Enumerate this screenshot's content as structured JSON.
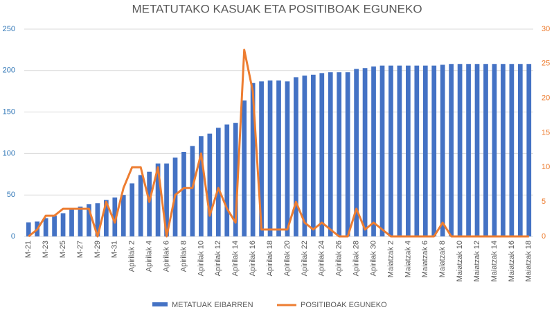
{
  "chart_data": {
    "type": "bar-line",
    "title": "METATUTAKO KASUAK ETA POSITIBOAK EGUNEKO",
    "categories": [
      "M-21",
      null,
      "M-23",
      null,
      "M-25",
      null,
      "M-27",
      null,
      "M-29",
      null,
      "M-31",
      null,
      "Apirilak 2",
      null,
      "Apirilak 4",
      null,
      "Apirilak 6",
      null,
      "Apirilak 8",
      null,
      "Apirilak 10",
      null,
      "Apirilak 12",
      null,
      "Apirilak 14",
      null,
      "Apirilak 16",
      null,
      "Apirilak 18",
      null,
      "Apirilak 20",
      null,
      "Apirilak 22",
      null,
      "Apirilak 24",
      null,
      "Apirilak 26",
      null,
      "Apirilak 28",
      null,
      "Apirilak 30",
      null,
      "Maiatzak 2",
      null,
      "Maiatzak 4",
      null,
      "Maiatzak 6",
      null,
      "Maiatzak 8",
      null,
      "Maiatzak 10",
      null,
      "Maiatzak 12",
      null,
      "Maiatzak 14",
      null,
      "Maiatzak 16",
      null,
      "Maiatzak 18"
    ],
    "series": [
      {
        "name": "METATUAK EIBARREN",
        "color": "#4472c4",
        "kind": "bar",
        "values": [
          17,
          18,
          22,
          25,
          28,
          33,
          36,
          39,
          40,
          44,
          47,
          50,
          64,
          74,
          78,
          88,
          88,
          95,
          102,
          109,
          121,
          124,
          131,
          135,
          137,
          164,
          185,
          187,
          188,
          188,
          187,
          192,
          194,
          195,
          197,
          198,
          198,
          198,
          202,
          203,
          205,
          206,
          206,
          206,
          206,
          206,
          206,
          206,
          207,
          208,
          208,
          208,
          208,
          208,
          208,
          208,
          208,
          208,
          208
        ]
      },
      {
        "name": "POSITIBOAK EGUNEKO",
        "color": "#ed7d31",
        "kind": "line",
        "axis": "y2",
        "values": [
          0,
          1,
          3,
          3,
          4,
          4,
          4,
          4,
          0,
          5,
          2,
          7,
          10,
          10,
          5,
          10,
          0,
          6,
          7,
          7,
          12,
          3,
          7,
          4,
          2,
          27,
          21,
          1,
          1,
          1,
          1,
          5,
          2,
          1,
          2,
          1,
          0,
          0,
          4,
          1,
          2,
          1,
          0,
          0,
          0,
          0,
          0,
          0,
          2,
          0,
          0,
          0,
          0,
          0,
          0,
          0,
          0,
          0,
          0
        ]
      }
    ],
    "ylim": [
      0,
      250
    ],
    "yticks": [
      0,
      50,
      100,
      150,
      200,
      250
    ],
    "y2lim": [
      0,
      30
    ],
    "y2ticks": [
      0,
      5,
      10,
      15,
      20,
      25,
      30
    ],
    "grid": true,
    "legend": "bottom"
  }
}
